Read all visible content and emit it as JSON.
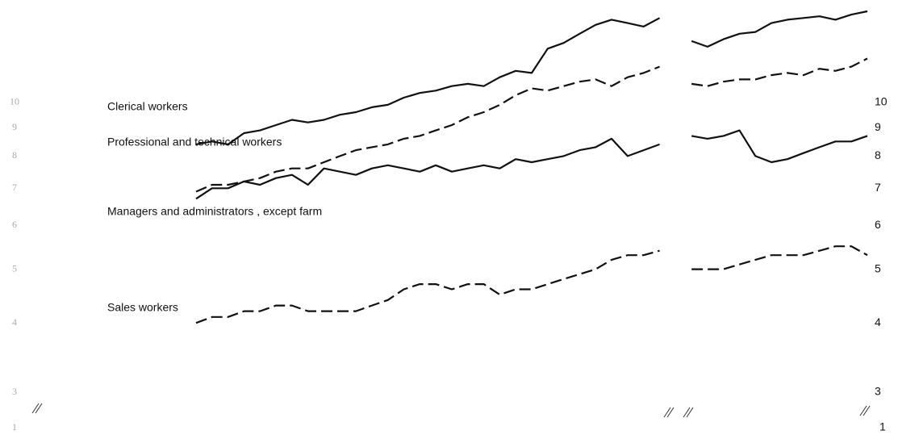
{
  "chart_data": {
    "type": "line",
    "log_scale": true,
    "ylim": [
      2.47,
      15.3
    ],
    "yticks": [
      3,
      4,
      5,
      6,
      7,
      8,
      9,
      10
    ],
    "y_break_tick": 1,
    "categories": [
      null,
      null,
      null,
      null,
      null,
      null,
      null,
      null,
      null,
      null,
      null,
      null,
      null,
      null,
      null,
      null,
      null,
      null,
      null,
      null,
      null,
      null,
      null,
      null,
      null,
      null,
      null,
      null,
      null,
      null,
      null,
      null,
      null,
      null,
      null,
      null,
      null,
      null,
      null,
      null,
      null,
      null,
      null
    ],
    "series": [
      {
        "name": "Clerical workers",
        "color": "#111111",
        "dash": false,
        "values": [
          8.4,
          8.5,
          8.4,
          8.8,
          8.9,
          9.1,
          9.3,
          9.2,
          9.3,
          9.5,
          9.6,
          9.8,
          9.9,
          10.2,
          10.4,
          10.5,
          10.7,
          10.8,
          10.7,
          11.1,
          11.4,
          11.3,
          12.5,
          12.8,
          13.3,
          13.8,
          14.1,
          13.9,
          13.7,
          14.2,
          null,
          12.9,
          12.6,
          13.0,
          13.3,
          13.4,
          13.9,
          14.1,
          14.2,
          14.3,
          14.1,
          14.4,
          14.6
        ]
      },
      {
        "name": "Professional and technical workers",
        "color": "#111111",
        "dash": true,
        "values": [
          6.9,
          7.1,
          7.1,
          7.2,
          7.3,
          7.5,
          7.6,
          7.6,
          7.8,
          8.0,
          8.2,
          8.3,
          8.4,
          8.6,
          8.7,
          8.9,
          9.1,
          9.4,
          9.6,
          9.9,
          10.3,
          10.6,
          10.5,
          10.7,
          10.9,
          11.0,
          10.7,
          11.1,
          11.3,
          11.6,
          null,
          10.8,
          10.7,
          10.9,
          11.0,
          11.0,
          11.2,
          11.3,
          11.2,
          11.5,
          11.4,
          11.6,
          12.0
        ]
      },
      {
        "name": "Managers and administrators , except farm",
        "color": "#111111",
        "dash": false,
        "values": [
          6.7,
          7.0,
          7.0,
          7.2,
          7.1,
          7.3,
          7.4,
          7.1,
          7.6,
          7.5,
          7.4,
          7.6,
          7.7,
          7.6,
          7.5,
          7.7,
          7.5,
          7.6,
          7.7,
          7.6,
          7.9,
          7.8,
          7.9,
          8.0,
          8.2,
          8.3,
          8.6,
          8.0,
          8.2,
          8.4,
          null,
          8.7,
          8.6,
          8.7,
          8.9,
          8.0,
          7.8,
          7.9,
          8.1,
          8.3,
          8.5,
          8.5,
          8.7
        ]
      },
      {
        "name": "Sales workers",
        "color": "#111111",
        "dash": true,
        "values": [
          4.0,
          4.1,
          4.1,
          4.2,
          4.2,
          4.3,
          4.3,
          4.2,
          4.2,
          4.2,
          4.2,
          4.3,
          4.4,
          4.6,
          4.7,
          4.7,
          4.6,
          4.7,
          4.7,
          4.5,
          4.6,
          4.6,
          4.7,
          4.8,
          4.9,
          5.0,
          5.2,
          5.3,
          5.3,
          5.4,
          null,
          5.0,
          5.0,
          5.0,
          5.1,
          5.2,
          5.3,
          5.3,
          5.3,
          5.4,
          5.5,
          5.5,
          5.3
        ]
      }
    ]
  }
}
